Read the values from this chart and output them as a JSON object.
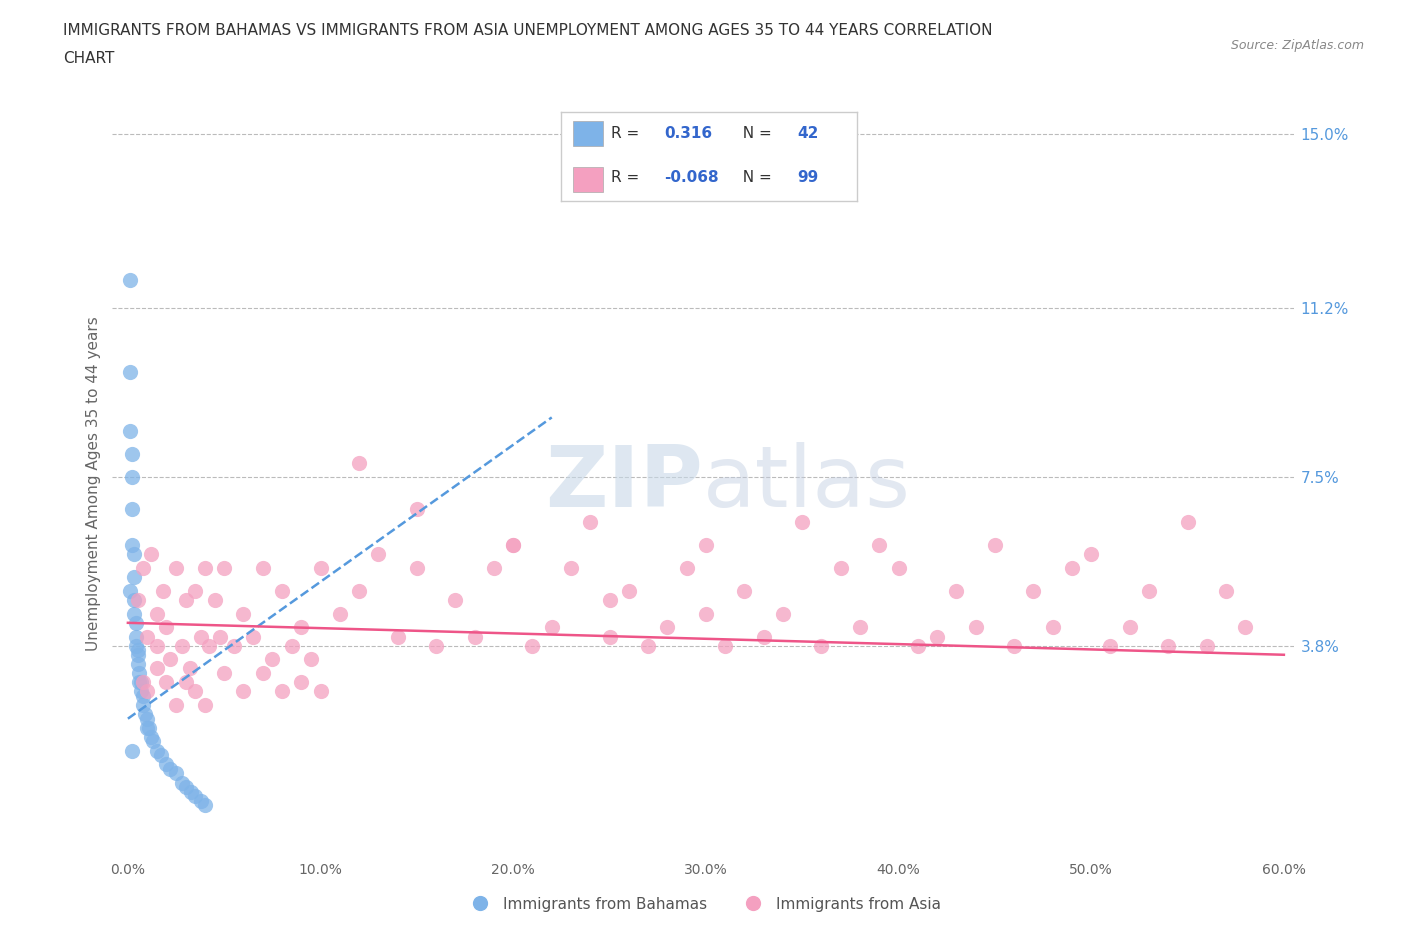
{
  "title_line1": "IMMIGRANTS FROM BAHAMAS VS IMMIGRANTS FROM ASIA UNEMPLOYMENT AMONG AGES 35 TO 44 YEARS CORRELATION",
  "title_line2": "CHART",
  "source": "Source: ZipAtlas.com",
  "ylabel": "Unemployment Among Ages 35 to 44 years",
  "xlim": [
    0.0,
    0.6
  ],
  "ylim": [
    0.0,
    0.155
  ],
  "yticks": [
    0.038,
    0.075,
    0.112,
    0.15
  ],
  "ytick_labels": [
    "3.8%",
    "7.5%",
    "11.2%",
    "15.0%"
  ],
  "xticks": [
    0.0,
    0.1,
    0.2,
    0.3,
    0.4,
    0.5,
    0.6
  ],
  "xtick_labels": [
    "0.0%",
    "10.0%",
    "20.0%",
    "30.0%",
    "40.0%",
    "50.0%",
    "60.0%"
  ],
  "bahamas_R": 0.316,
  "bahamas_N": 42,
  "asia_R": -0.068,
  "asia_N": 99,
  "bahamas_color": "#7EB3E8",
  "asia_color": "#F4A0C0",
  "bahamas_trend_color": "#5599DD",
  "asia_trend_color": "#EE5588",
  "watermark": "ZIPatlas",
  "background_color": "#FFFFFF",
  "grid_color": "#BBBBBB",
  "title_color": "#333333",
  "legend_r_color": "#3366CC",
  "legend_n_color": "#3366CC",
  "bahamas_x": [
    0.001,
    0.001,
    0.001,
    0.002,
    0.002,
    0.002,
    0.002,
    0.003,
    0.003,
    0.003,
    0.003,
    0.004,
    0.004,
    0.004,
    0.005,
    0.005,
    0.005,
    0.006,
    0.006,
    0.007,
    0.007,
    0.008,
    0.008,
    0.009,
    0.01,
    0.01,
    0.011,
    0.012,
    0.013,
    0.015,
    0.017,
    0.02,
    0.022,
    0.025,
    0.028,
    0.03,
    0.033,
    0.035,
    0.038,
    0.04,
    0.001,
    0.002
  ],
  "bahamas_y": [
    0.118,
    0.098,
    0.085,
    0.08,
    0.075,
    0.068,
    0.06,
    0.058,
    0.053,
    0.048,
    0.045,
    0.043,
    0.04,
    0.038,
    0.037,
    0.036,
    0.034,
    0.032,
    0.03,
    0.03,
    0.028,
    0.027,
    0.025,
    0.023,
    0.022,
    0.02,
    0.02,
    0.018,
    0.017,
    0.015,
    0.014,
    0.012,
    0.011,
    0.01,
    0.008,
    0.007,
    0.006,
    0.005,
    0.004,
    0.003,
    0.05,
    0.015
  ],
  "bahamas_trend_x": [
    0.0,
    0.22
  ],
  "bahamas_trend_y": [
    0.022,
    0.088
  ],
  "asia_trend_x": [
    0.0,
    0.6
  ],
  "asia_trend_y": [
    0.043,
    0.036
  ],
  "asia_x": [
    0.005,
    0.008,
    0.01,
    0.012,
    0.015,
    0.015,
    0.018,
    0.02,
    0.022,
    0.025,
    0.028,
    0.03,
    0.032,
    0.035,
    0.038,
    0.04,
    0.042,
    0.045,
    0.048,
    0.05,
    0.055,
    0.06,
    0.065,
    0.07,
    0.075,
    0.08,
    0.085,
    0.09,
    0.095,
    0.1,
    0.11,
    0.12,
    0.13,
    0.14,
    0.15,
    0.16,
    0.17,
    0.18,
    0.19,
    0.2,
    0.21,
    0.22,
    0.23,
    0.24,
    0.25,
    0.26,
    0.27,
    0.28,
    0.29,
    0.3,
    0.31,
    0.32,
    0.33,
    0.34,
    0.35,
    0.36,
    0.37,
    0.38,
    0.39,
    0.4,
    0.41,
    0.42,
    0.43,
    0.44,
    0.45,
    0.46,
    0.47,
    0.48,
    0.49,
    0.5,
    0.51,
    0.52,
    0.53,
    0.54,
    0.55,
    0.56,
    0.57,
    0.58,
    0.008,
    0.01,
    0.015,
    0.02,
    0.025,
    0.03,
    0.035,
    0.04,
    0.05,
    0.06,
    0.07,
    0.08,
    0.09,
    0.1,
    0.12,
    0.15,
    0.2,
    0.25,
    0.3
  ],
  "asia_y": [
    0.048,
    0.055,
    0.04,
    0.058,
    0.045,
    0.038,
    0.05,
    0.042,
    0.035,
    0.055,
    0.038,
    0.048,
    0.033,
    0.05,
    0.04,
    0.055,
    0.038,
    0.048,
    0.04,
    0.055,
    0.038,
    0.045,
    0.04,
    0.055,
    0.035,
    0.05,
    0.038,
    0.042,
    0.035,
    0.055,
    0.045,
    0.05,
    0.058,
    0.04,
    0.055,
    0.038,
    0.048,
    0.04,
    0.055,
    0.06,
    0.038,
    0.042,
    0.055,
    0.065,
    0.04,
    0.05,
    0.038,
    0.042,
    0.055,
    0.06,
    0.038,
    0.05,
    0.04,
    0.045,
    0.065,
    0.038,
    0.055,
    0.042,
    0.06,
    0.055,
    0.038,
    0.04,
    0.05,
    0.042,
    0.06,
    0.038,
    0.05,
    0.042,
    0.055,
    0.058,
    0.038,
    0.042,
    0.05,
    0.038,
    0.065,
    0.038,
    0.05,
    0.042,
    0.03,
    0.028,
    0.033,
    0.03,
    0.025,
    0.03,
    0.028,
    0.025,
    0.032,
    0.028,
    0.032,
    0.028,
    0.03,
    0.028,
    0.078,
    0.068,
    0.06,
    0.048,
    0.045
  ]
}
